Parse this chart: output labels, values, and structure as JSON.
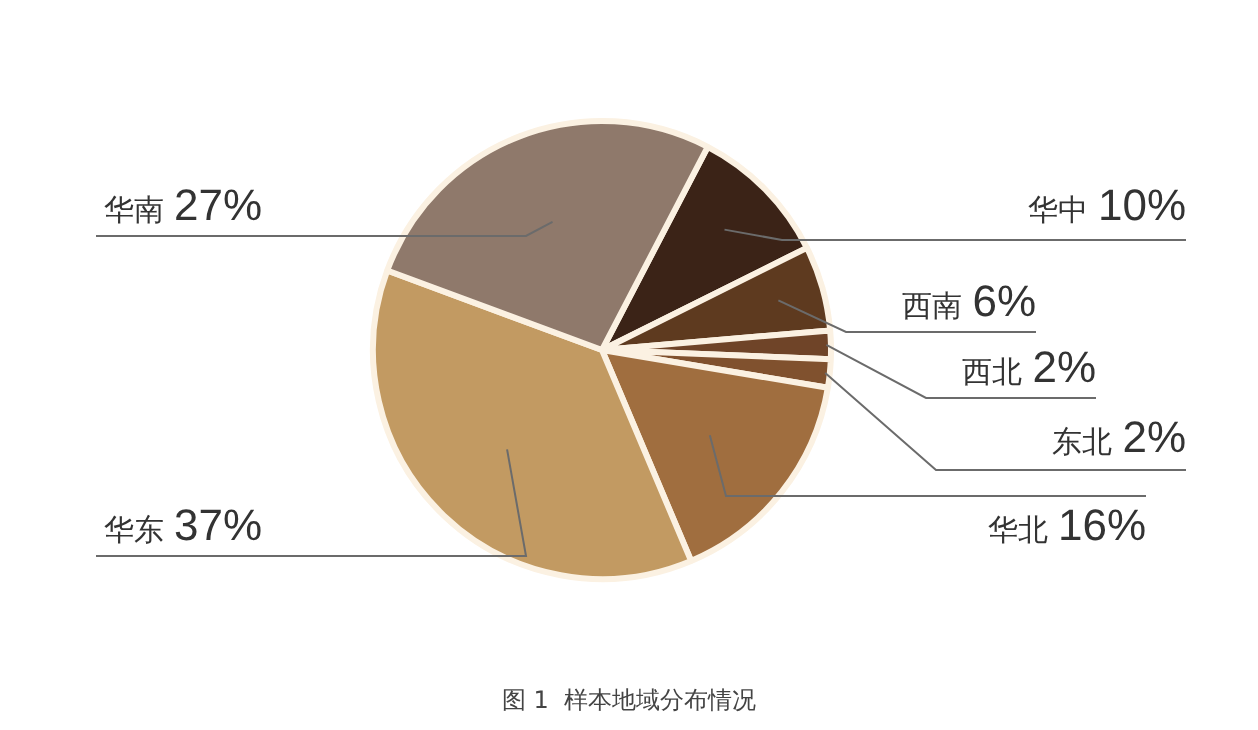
{
  "chart_data": {
    "type": "pie",
    "categories": [
      "华中",
      "西南",
      "西北",
      "东北",
      "华北",
      "华东",
      "华南"
    ],
    "values": [
      10,
      6,
      2,
      2,
      16,
      37,
      27
    ],
    "value_labels": [
      "10%",
      "6%",
      "2%",
      "2%",
      "16%",
      "37%",
      "27%"
    ],
    "colors": [
      "#3b2317",
      "#5e3a1f",
      "#6f4428",
      "#80512e",
      "#a06e3f",
      "#c29a62",
      "#8f796b"
    ],
    "legend": false,
    "annotations": [
      "图 1  样本地域分布情况"
    ]
  }
}
